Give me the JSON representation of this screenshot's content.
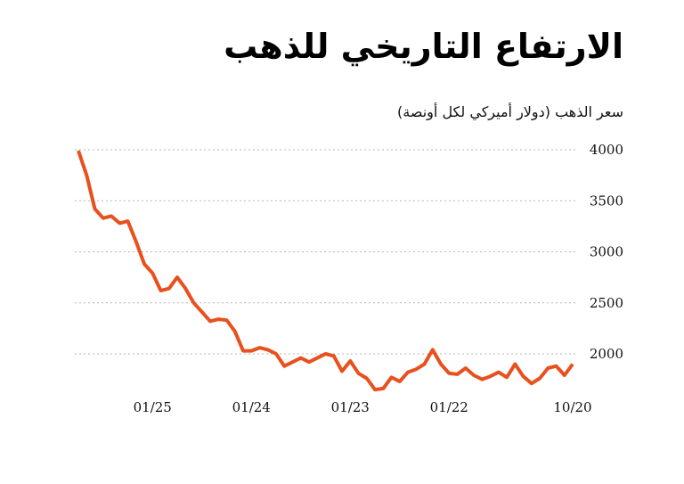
{
  "chart_data": {
    "type": "line",
    "title": "الارتفاع التاريخي للذهب",
    "subtitle": "سعر الذهب (دولار أميركي لكل أونصة)",
    "xlabel": "",
    "ylabel": "",
    "x_direction": "reversed (right-to-left, newest on left)",
    "ylim": [
      1650,
      4000
    ],
    "y_ticks": [
      "4000",
      "3500",
      "3000",
      "2500",
      "2000"
    ],
    "x_ticks": [
      {
        "label": "10/20",
        "date": "2020-10"
      },
      {
        "label": "01/22",
        "date": "2022-01"
      },
      {
        "label": "01/23",
        "date": "2023-01"
      },
      {
        "label": "01/24",
        "date": "2024-01"
      },
      {
        "label": "01/25",
        "date": "2025-01"
      }
    ],
    "grid": "horizontal dotted",
    "color": "#e8501e",
    "series": [
      {
        "points": [
          [
            "2020-10",
            1900
          ],
          [
            "2020-11",
            1790
          ],
          [
            "2020-12",
            1880
          ],
          [
            "2021-01",
            1860
          ],
          [
            "2021-02",
            1760
          ],
          [
            "2021-03",
            1710
          ],
          [
            "2021-04",
            1780
          ],
          [
            "2021-05",
            1900
          ],
          [
            "2021-06",
            1770
          ],
          [
            "2021-07",
            1820
          ],
          [
            "2021-08",
            1780
          ],
          [
            "2021-09",
            1750
          ],
          [
            "2021-10",
            1790
          ],
          [
            "2021-11",
            1860
          ],
          [
            "2021-12",
            1800
          ],
          [
            "2022-01",
            1810
          ],
          [
            "2022-02",
            1900
          ],
          [
            "2022-03",
            2040
          ],
          [
            "2022-04",
            1900
          ],
          [
            "2022-05",
            1850
          ],
          [
            "2022-06",
            1820
          ],
          [
            "2022-07",
            1730
          ],
          [
            "2022-08",
            1770
          ],
          [
            "2022-09",
            1660
          ],
          [
            "2022-10",
            1650
          ],
          [
            "2022-11",
            1760
          ],
          [
            "2022-12",
            1810
          ],
          [
            "2023-01",
            1930
          ],
          [
            "2023-02",
            1830
          ],
          [
            "2023-03",
            1980
          ],
          [
            "2023-04",
            2000
          ],
          [
            "2023-05",
            1960
          ],
          [
            "2023-06",
            1920
          ],
          [
            "2023-07",
            1960
          ],
          [
            "2023-08",
            1920
          ],
          [
            "2023-09",
            1880
          ],
          [
            "2023-10",
            2000
          ],
          [
            "2023-11",
            2040
          ],
          [
            "2023-12",
            2060
          ],
          [
            "2024-01",
            2030
          ],
          [
            "2024-02",
            2030
          ],
          [
            "2024-03",
            2220
          ],
          [
            "2024-04",
            2330
          ],
          [
            "2024-05",
            2340
          ],
          [
            "2024-06",
            2320
          ],
          [
            "2024-07",
            2410
          ],
          [
            "2024-08",
            2500
          ],
          [
            "2024-09",
            2640
          ],
          [
            "2024-10",
            2750
          ],
          [
            "2024-11",
            2640
          ],
          [
            "2024-12",
            2620
          ],
          [
            "2025-01",
            2790
          ],
          [
            "2025-02",
            2880
          ],
          [
            "2025-03",
            3100
          ],
          [
            "2025-04",
            3300
          ],
          [
            "2025-05",
            3280
          ],
          [
            "2025-06",
            3350
          ],
          [
            "2025-07",
            3330
          ],
          [
            "2025-08",
            3420
          ],
          [
            "2025-09",
            3750
          ],
          [
            "2025-10",
            3990
          ]
        ]
      }
    ]
  }
}
